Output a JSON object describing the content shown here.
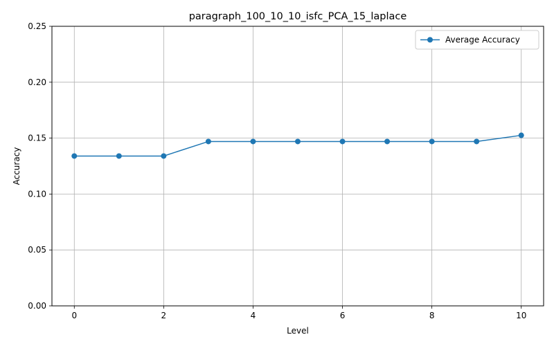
{
  "chart_data": {
    "type": "line",
    "title": "paragraph_100_10_10_isfc_PCA_15_laplace",
    "xlabel": "Level",
    "ylabel": "Accuracy",
    "xlim": [
      -0.5,
      10.5
    ],
    "ylim": [
      0,
      0.25
    ],
    "xticks": [
      0,
      2,
      4,
      6,
      8,
      10
    ],
    "yticks": [
      0.0,
      0.05,
      0.1,
      0.15,
      0.2,
      0.25
    ],
    "ytick_labels": [
      "0.00",
      "0.05",
      "0.10",
      "0.15",
      "0.20",
      "0.25"
    ],
    "grid": true,
    "legend_position": "top-right",
    "series": [
      {
        "name": "Average Accuracy",
        "color": "#1f77b4",
        "marker": "circle",
        "x": [
          0,
          1,
          2,
          3,
          4,
          5,
          6,
          7,
          8,
          9,
          10
        ],
        "y": [
          0.134,
          0.134,
          0.134,
          0.147,
          0.147,
          0.147,
          0.147,
          0.147,
          0.147,
          0.147,
          0.1525
        ]
      }
    ]
  }
}
